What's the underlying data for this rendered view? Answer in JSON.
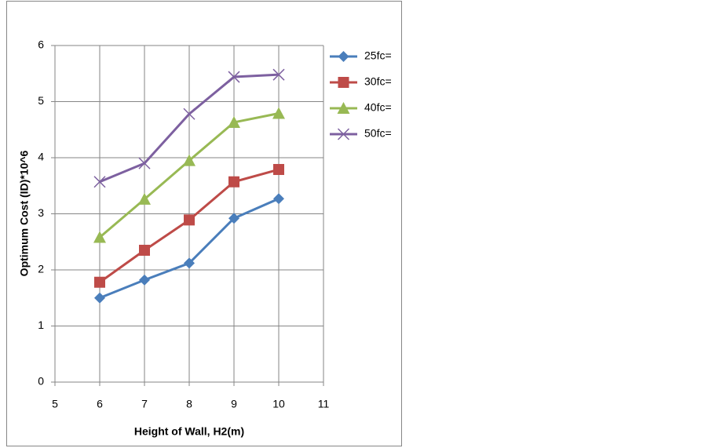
{
  "chart_data": {
    "type": "line",
    "x_label": "Height of Wall, H2(m)",
    "y_label": "Optimum Cost (ID)*10^6",
    "xlim": [
      5,
      11
    ],
    "xticks": [
      5,
      6,
      7,
      8,
      9,
      10,
      11
    ],
    "ylim": [
      0,
      6
    ],
    "yticks": [
      0,
      1,
      2,
      3,
      4,
      5,
      6
    ],
    "grid": true,
    "legend": "right",
    "x": [
      6,
      7,
      8,
      9,
      10
    ],
    "series": [
      {
        "name": "25fc=",
        "color": "#4a7ebb",
        "marker": "diamond",
        "values": [
          1.5,
          1.82,
          2.12,
          2.92,
          3.27
        ]
      },
      {
        "name": "30fc=",
        "color": "#be4b48",
        "marker": "square",
        "values": [
          1.78,
          2.35,
          2.89,
          3.57,
          3.79
        ]
      },
      {
        "name": "40fc=",
        "color": "#98b954",
        "marker": "triangle",
        "values": [
          2.58,
          3.26,
          3.95,
          4.63,
          4.79
        ]
      },
      {
        "name": "50fc=",
        "color": "#7d60a0",
        "marker": "x",
        "values": [
          3.57,
          3.9,
          4.78,
          5.44,
          5.48
        ]
      }
    ]
  }
}
